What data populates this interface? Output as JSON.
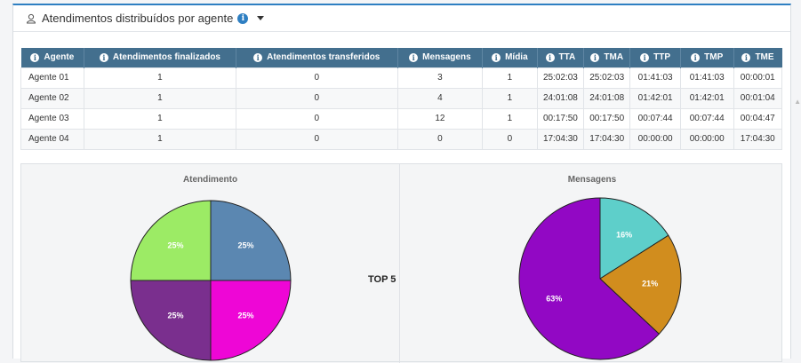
{
  "header": {
    "title": "Atendimentos distribuídos por agente",
    "info": "i"
  },
  "table": {
    "columns": [
      "Agente",
      "Atendimentos finalizados",
      "Atendimentos transferidos",
      "Mensagens",
      "Mídia",
      "TTA",
      "TMA",
      "TTP",
      "TMP",
      "TME"
    ],
    "rows": [
      [
        "Agente 01",
        "1",
        "0",
        "3",
        "1",
        "25:02:03",
        "25:02:03",
        "01:41:03",
        "01:41:03",
        "00:00:01"
      ],
      [
        "Agente 02",
        "1",
        "0",
        "4",
        "1",
        "24:01:08",
        "24:01:08",
        "01:42:01",
        "01:42:01",
        "00:01:04"
      ],
      [
        "Agente 03",
        "1",
        "0",
        "12",
        "1",
        "00:17:50",
        "00:17:50",
        "00:07:44",
        "00:07:44",
        "00:04:47"
      ],
      [
        "Agente 04",
        "1",
        "0",
        "0",
        "0",
        "17:04:30",
        "17:04:30",
        "00:00:00",
        "00:00:00",
        "17:04:30"
      ]
    ]
  },
  "top_label": "TOP 5",
  "chart_data": [
    {
      "type": "pie",
      "title": "Atendimento",
      "slices": [
        {
          "value": 25,
          "label": "25%",
          "color": "#5b87b1"
        },
        {
          "value": 25,
          "label": "25%",
          "color": "#ee06d6"
        },
        {
          "value": 25,
          "label": "25%",
          "color": "#7a2f8e"
        },
        {
          "value": 25,
          "label": "25%",
          "color": "#9ceb65"
        }
      ]
    },
    {
      "type": "pie",
      "title": "Mensagens",
      "slices": [
        {
          "value": 16,
          "label": "16%",
          "color": "#5ecfca"
        },
        {
          "value": 21,
          "label": "21%",
          "color": "#d18d1e"
        },
        {
          "value": 63,
          "label": "63%",
          "color": "#9208c4"
        }
      ]
    }
  ]
}
